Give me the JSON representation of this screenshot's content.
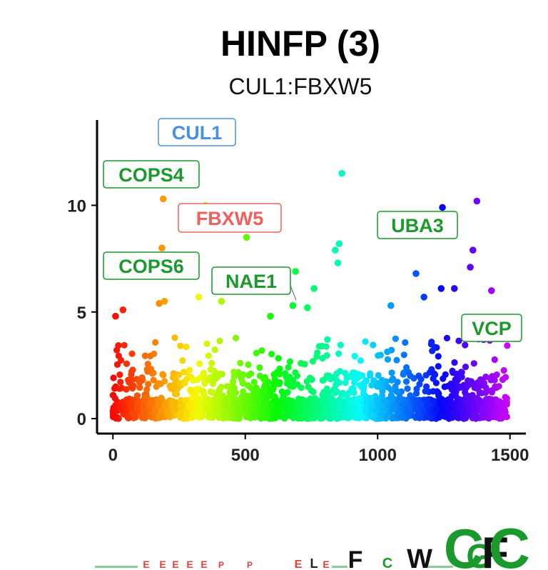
{
  "title": "HINFP (3)",
  "subtitle": "CUL1:FBXW5",
  "chart_data": {
    "type": "scatter",
    "xlim": [
      -60,
      1560
    ],
    "ylim": [
      -0.7,
      14
    ],
    "x_ticks": [
      0,
      500,
      1000,
      1500
    ],
    "y_ticks": [
      0,
      5,
      10
    ],
    "grid": false,
    "color_scale": "rainbow by x position (red to violet)",
    "highlighted_points": [
      {
        "x": 10,
        "y": 4.8
      },
      {
        "x": 38,
        "y": 5.1
      },
      {
        "x": 190,
        "y": 10.3
      },
      {
        "x": 350,
        "y": 10.0
      },
      {
        "x": 185,
        "y": 8.0
      },
      {
        "x": 505,
        "y": 8.5
      },
      {
        "x": 690,
        "y": 6.9
      },
      {
        "x": 680,
        "y": 5.3
      },
      {
        "x": 865,
        "y": 11.5
      },
      {
        "x": 855,
        "y": 8.2
      },
      {
        "x": 840,
        "y": 7.9
      },
      {
        "x": 850,
        "y": 7.3
      },
      {
        "x": 1245,
        "y": 9.9
      },
      {
        "x": 1375,
        "y": 10.2
      },
      {
        "x": 1360,
        "y": 7.9
      },
      {
        "x": 1350,
        "y": 7.1
      },
      {
        "x": 1145,
        "y": 6.8
      },
      {
        "x": 1430,
        "y": 6.0
      },
      {
        "x": 1240,
        "y": 6.1
      },
      {
        "x": 1290,
        "y": 6.1
      },
      {
        "x": 1050,
        "y": 5.3
      },
      {
        "x": 760,
        "y": 6.1
      },
      {
        "x": 640,
        "y": 6.0
      },
      {
        "x": 175,
        "y": 5.4
      },
      {
        "x": 195,
        "y": 5.5
      },
      {
        "x": 325,
        "y": 5.7
      },
      {
        "x": 410,
        "y": 5.5
      },
      {
        "x": 595,
        "y": 4.8
      },
      {
        "x": 735,
        "y": 5.2
      },
      {
        "x": 1175,
        "y": 5.7
      }
    ],
    "labels": [
      {
        "text": "CUL1",
        "color": "#4a90e2",
        "x": 310
      },
      {
        "text": "COPS4",
        "color": "#1a9a2c",
        "x": 180
      },
      {
        "text": "FBXW5",
        "color": "#f0605a",
        "x": 310
      },
      {
        "text": "COPS6",
        "color": "#1a9a2c",
        "x": 180
      },
      {
        "text": "NAE1",
        "color": "#1a9a2c",
        "x": 590
      },
      {
        "text": "UBA3",
        "color": "#1a9a2c",
        "x": 1080
      },
      {
        "text": "VCP",
        "color": "#1a9a2c",
        "x": 1400
      }
    ]
  },
  "logo": {
    "letters": [
      "E",
      "E",
      "E",
      "E",
      "E",
      "P",
      "P",
      "E",
      "L",
      "E",
      "F",
      "C",
      "W",
      "C",
      "G",
      "F",
      "C"
    ],
    "colors": {
      "E": "#e0403a",
      "P": "#e0403a",
      "L": "#222222",
      "F": "#111111",
      "C": "#1a9a2c",
      "G": "#1a9a2c",
      "W": "#111111"
    }
  }
}
